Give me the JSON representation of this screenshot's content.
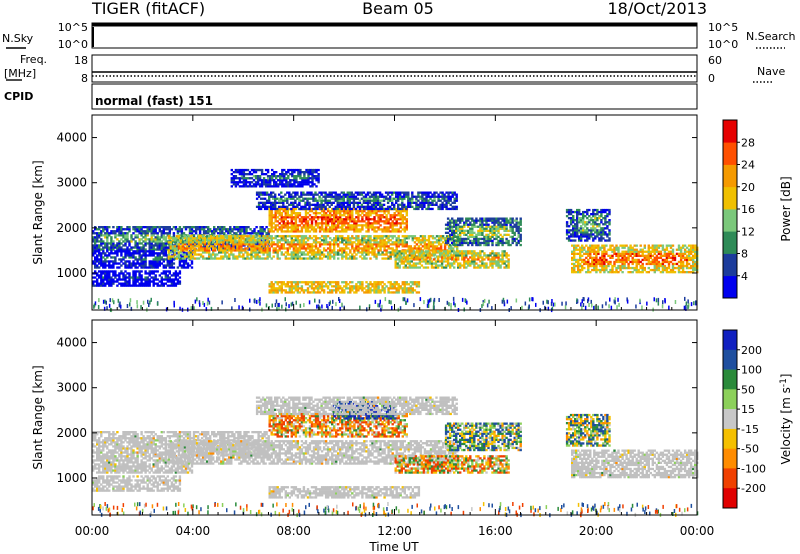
{
  "header": {
    "station": "TIGER (fitACF)",
    "beam": "Beam 05",
    "date": "18/Oct/2013"
  },
  "summary_panels": {
    "nsky": {
      "label": "N.Sky",
      "tick_top": "10^5",
      "tick_bottom": "10^0"
    },
    "nsearch": {
      "label": "N.Search",
      "tick_top": "10^5",
      "tick_bottom": "10^0"
    },
    "freq": {
      "label_line1": "Freq.",
      "label_line2": "[MHz]",
      "tick_top": "18",
      "tick_bottom": "8"
    },
    "nave": {
      "label": "Nave",
      "tick_top": "60",
      "tick_bottom": "0"
    },
    "cpid": {
      "label": "CPID",
      "mode_text": "normal (fast) 151"
    }
  },
  "colors": {
    "power_scale": [
      "#0000ee",
      "#1c3c9c",
      "#2e8b57",
      "#7bc87b",
      "#f0c000",
      "#f59a00",
      "#ff5000",
      "#e60000"
    ],
    "velocity_scale": [
      "#1020c0",
      "#1f4f9f",
      "#2a8a3a",
      "#8cd05a",
      "#c8c8c8",
      "#f5c000",
      "#ff8c00",
      "#f04000",
      "#e00000"
    ],
    "ground_scatter": "#c0c0c0"
  },
  "chart_data": [
    {
      "type": "heatmap",
      "title": "",
      "xlabel": "",
      "ylabel": "Slant Range [km]",
      "x_ticks": [
        "00:00",
        "04:00",
        "08:00",
        "12:00",
        "16:00",
        "20:00",
        "00:00"
      ],
      "xlim_hours": [
        0,
        24
      ],
      "y_ticks": [
        1000,
        2000,
        3000,
        4000
      ],
      "ylim": [
        180,
        4500
      ],
      "colorbar": {
        "label": "Power [dB]",
        "ticks": [
          4,
          8,
          12,
          16,
          20,
          24,
          28
        ],
        "range": [
          0,
          32
        ]
      },
      "echo_regions": [
        {
          "t": [
            0.0,
            7.0
          ],
          "range": [
            1500,
            2000
          ],
          "value": 12
        },
        {
          "t": [
            0.0,
            4.0
          ],
          "range": [
            1100,
            1500
          ],
          "value": 7
        },
        {
          "t": [
            0.0,
            3.5
          ],
          "range": [
            700,
            1050
          ],
          "value": 6
        },
        {
          "t": [
            3.0,
            14.5
          ],
          "range": [
            1300,
            1800
          ],
          "value": 22
        },
        {
          "t": [
            7.0,
            12.5
          ],
          "range": [
            1900,
            2400
          ],
          "value": 27
        },
        {
          "t": [
            6.5,
            14.5
          ],
          "range": [
            2400,
            2800
          ],
          "value": 10
        },
        {
          "t": [
            7.0,
            13.0
          ],
          "range": [
            550,
            800
          ],
          "value": 25
        },
        {
          "t": [
            12.0,
            16.5
          ],
          "range": [
            1100,
            1500
          ],
          "value": 22
        },
        {
          "t": [
            14.0,
            17.0
          ],
          "range": [
            1600,
            2200
          ],
          "value": 14
        },
        {
          "t": [
            19.0,
            24.0
          ],
          "range": [
            1000,
            1600
          ],
          "value": 24
        },
        {
          "t": [
            18.8,
            20.5
          ],
          "range": [
            1700,
            2400
          ],
          "value": 12
        },
        {
          "t": [
            5.5,
            9.0
          ],
          "range": [
            2900,
            3300
          ],
          "value": 8
        }
      ]
    },
    {
      "type": "heatmap",
      "title": "",
      "xlabel": "Time UT",
      "ylabel": "Slant Range [km]",
      "x_ticks": [
        "00:00",
        "04:00",
        "08:00",
        "12:00",
        "16:00",
        "20:00",
        "00:00"
      ],
      "xlim_hours": [
        0,
        24
      ],
      "y_ticks": [
        1000,
        2000,
        3000,
        4000
      ],
      "ylim": [
        180,
        4500
      ],
      "colorbar": {
        "label": "Velocity [m s^-1]",
        "ticks": [
          200,
          100,
          50,
          15,
          -15,
          -50,
          -100,
          -200
        ],
        "range": [
          -250,
          250
        ]
      },
      "echo_regions": [
        {
          "t": [
            0.0,
            7.0
          ],
          "range": [
            1500,
            2000
          ],
          "value": 0,
          "ground_scatter": true
        },
        {
          "t": [
            0.0,
            4.0
          ],
          "range": [
            1100,
            1500
          ],
          "value": 0,
          "ground_scatter": true
        },
        {
          "t": [
            0.0,
            3.5
          ],
          "range": [
            700,
            1050
          ],
          "value": 0,
          "ground_scatter": true
        },
        {
          "t": [
            3.0,
            14.5
          ],
          "range": [
            1300,
            1800
          ],
          "value": 0,
          "ground_scatter": true
        },
        {
          "t": [
            7.0,
            12.5
          ],
          "range": [
            1900,
            2400
          ],
          "value": -60
        },
        {
          "t": [
            9.5,
            12.0
          ],
          "range": [
            2300,
            2700
          ],
          "value": 180
        },
        {
          "t": [
            6.5,
            14.5
          ],
          "range": [
            2400,
            2800
          ],
          "value": 0,
          "ground_scatter": true
        },
        {
          "t": [
            7.0,
            13.0
          ],
          "range": [
            550,
            800
          ],
          "value": 0,
          "ground_scatter": true
        },
        {
          "t": [
            12.0,
            16.5
          ],
          "range": [
            1100,
            1500
          ],
          "value": -40
        },
        {
          "t": [
            14.0,
            17.0
          ],
          "range": [
            1600,
            2200
          ],
          "value": 60
        },
        {
          "t": [
            19.0,
            24.0
          ],
          "range": [
            1000,
            1600
          ],
          "value": 0,
          "ground_scatter": true
        },
        {
          "t": [
            18.8,
            20.5
          ],
          "range": [
            1700,
            2400
          ],
          "value": 40
        }
      ]
    }
  ]
}
